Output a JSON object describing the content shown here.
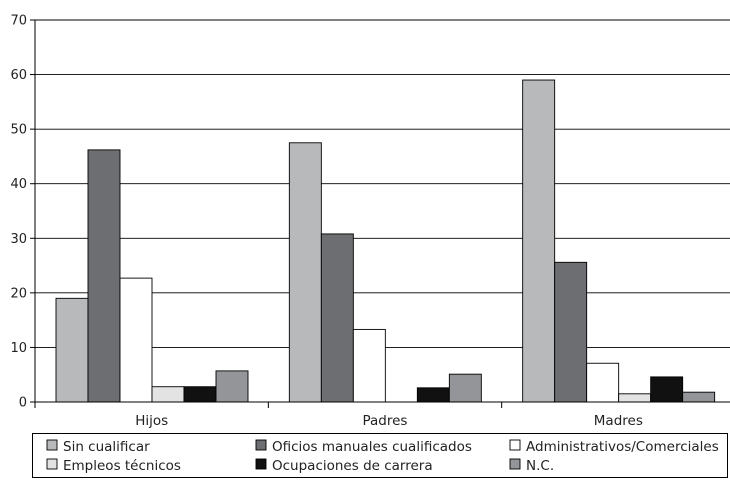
{
  "chart_data": {
    "type": "bar",
    "title": "",
    "xlabel": "",
    "ylabel": "",
    "categories": [
      "Hijos",
      "Padres",
      "Madres"
    ],
    "ylim": [
      0,
      70
    ],
    "yticks": [
      0,
      10,
      20,
      30,
      40,
      50,
      60,
      70
    ],
    "grid": "horizontal",
    "legend_position": "bottom",
    "series": [
      {
        "name": "Sin cualificar",
        "color": "#b8b9bb",
        "values": [
          19,
          47.5,
          59
        ]
      },
      {
        "name": "Oficios manuales cualificados",
        "color": "#6d6e71",
        "values": [
          46.2,
          30.8,
          25.6
        ]
      },
      {
        "name": "Administrativos/Comerciales",
        "color": "#ffffff",
        "values": [
          22.7,
          13.3,
          7.1
        ]
      },
      {
        "name": "Empleos técnicos",
        "color": "#e3e3e3",
        "values": [
          2.8,
          0,
          1.5
        ]
      },
      {
        "name": "Ocupaciones de carrera",
        "color": "#111111",
        "values": [
          2.8,
          2.6,
          4.6
        ]
      },
      {
        "name": "N.C.",
        "color": "#939598",
        "values": [
          5.7,
          5.1,
          1.8
        ]
      }
    ]
  }
}
